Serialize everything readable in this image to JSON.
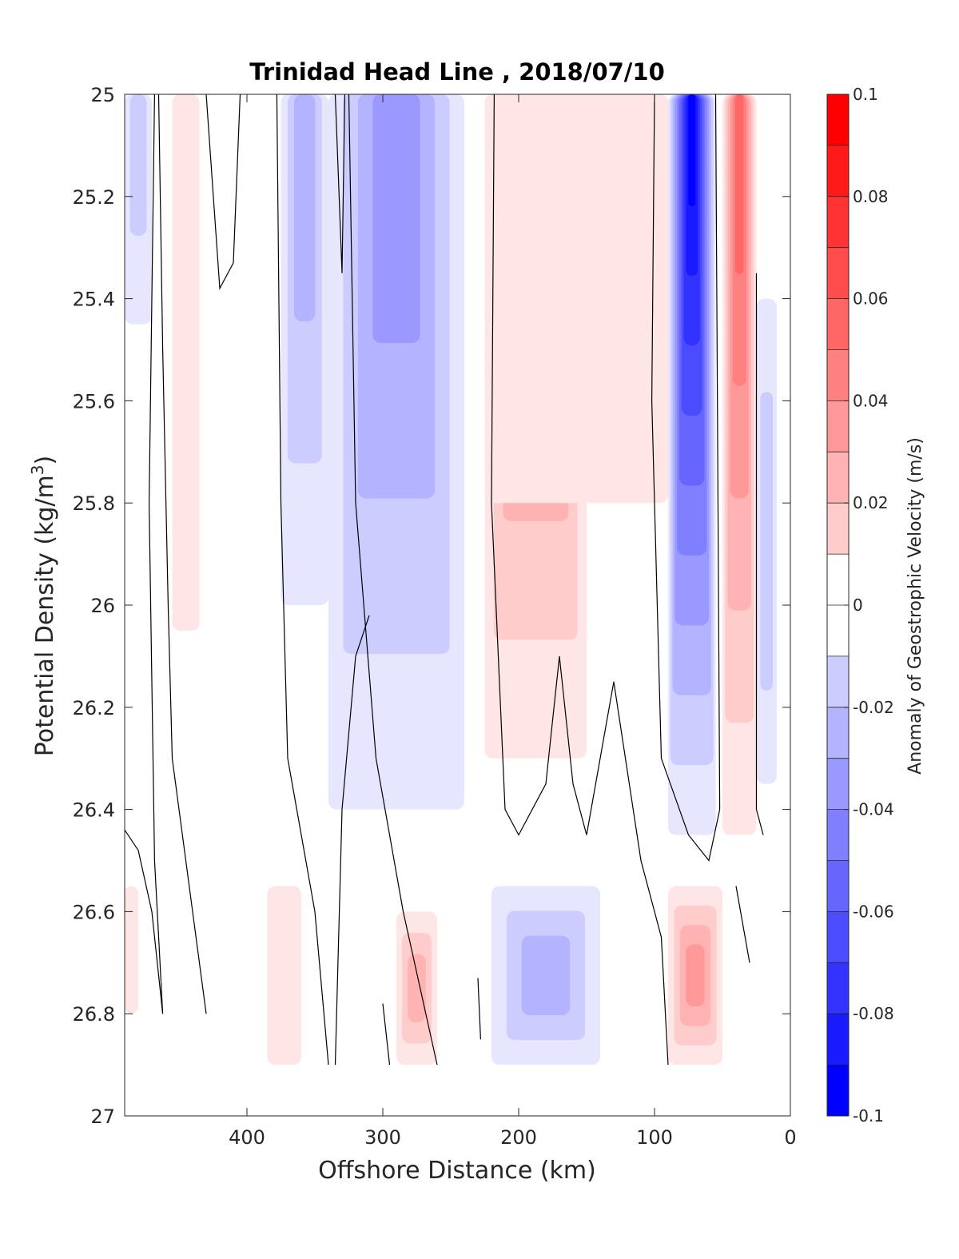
{
  "chart_data": {
    "type": "heatmap",
    "title": "Trinidad Head Line , 2018/07/10",
    "xlabel": "Offshore Distance (km)",
    "ylabel": "Potential Density (kg/m",
    "ylabel_sup": "3",
    "ylabel_close": ")",
    "colorbar_label": "Anomaly of Geostrophic Velocity (m/s)",
    "xlim": [
      490,
      0
    ],
    "ylim": [
      25,
      27
    ],
    "x_reversed": true,
    "y_reversed": true,
    "xticks": [
      "400",
      "300",
      "200",
      "100",
      "0"
    ],
    "xtick_values": [
      400,
      300,
      200,
      100,
      0
    ],
    "yticks": [
      "25",
      "25.2",
      "25.4",
      "25.6",
      "25.8",
      "26",
      "26.2",
      "26.4",
      "26.6",
      "26.8",
      "27"
    ],
    "ytick_values": [
      25,
      25.2,
      25.4,
      25.6,
      25.8,
      26,
      26.2,
      26.4,
      26.6,
      26.8,
      27
    ],
    "colorbar": {
      "min": -0.1,
      "max": 0.1,
      "step": 0.01,
      "ticks": [
        "0.1",
        "0.08",
        "0.06",
        "0.04",
        "0.02",
        "0",
        "-0.02",
        "-0.04",
        "-0.06",
        "-0.08",
        "-0.1"
      ],
      "tick_values": [
        0.1,
        0.08,
        0.06,
        0.04,
        0.02,
        0,
        -0.02,
        -0.04,
        -0.06,
        -0.08,
        -0.1
      ],
      "colormap": "blue-white-red"
    },
    "data_extent_sigma_max": 26.9,
    "zero_contour_color": "#000000",
    "features": [
      {
        "x": [
          470,
          490
        ],
        "y": [
          25.0,
          25.45
        ],
        "value": -0.02,
        "note": "weak negative near offshore edge"
      },
      {
        "x": [
          435,
          455
        ],
        "y": [
          25.0,
          26.05
        ],
        "value": 0.01
      },
      {
        "x": [
          340,
          375
        ],
        "y": [
          25.0,
          26.0
        ],
        "value": -0.03
      },
      {
        "x": [
          240,
          340
        ],
        "y": [
          25.0,
          26.4
        ],
        "value": -0.04
      },
      {
        "x": [
          150,
          225
        ],
        "y": [
          25.0,
          26.3
        ],
        "value": 0.05
      },
      {
        "x": [
          90,
          225
        ],
        "y": [
          25.0,
          25.8
        ],
        "value": 0.01
      },
      {
        "x": [
          55,
          90
        ],
        "y": [
          25.0,
          26.45
        ],
        "value": -0.1
      },
      {
        "x": [
          25,
          50
        ],
        "y": [
          25.0,
          26.45
        ],
        "value": 0.06
      },
      {
        "x": [
          10,
          25
        ],
        "y": [
          25.4,
          26.35
        ],
        "value": -0.02
      },
      {
        "x": [
          140,
          220
        ],
        "y": [
          26.55,
          26.9
        ],
        "value": -0.03
      },
      {
        "x": [
          50,
          90
        ],
        "y": [
          26.55,
          26.9
        ],
        "value": 0.04
      },
      {
        "x": [
          260,
          290
        ],
        "y": [
          26.6,
          26.9
        ],
        "value": 0.03
      },
      {
        "x": [
          360,
          385
        ],
        "y": [
          26.55,
          26.9
        ],
        "value": 0.01
      },
      {
        "x": [
          480,
          490
        ],
        "y": [
          26.55,
          26.8
        ],
        "value": 0.01
      }
    ]
  }
}
